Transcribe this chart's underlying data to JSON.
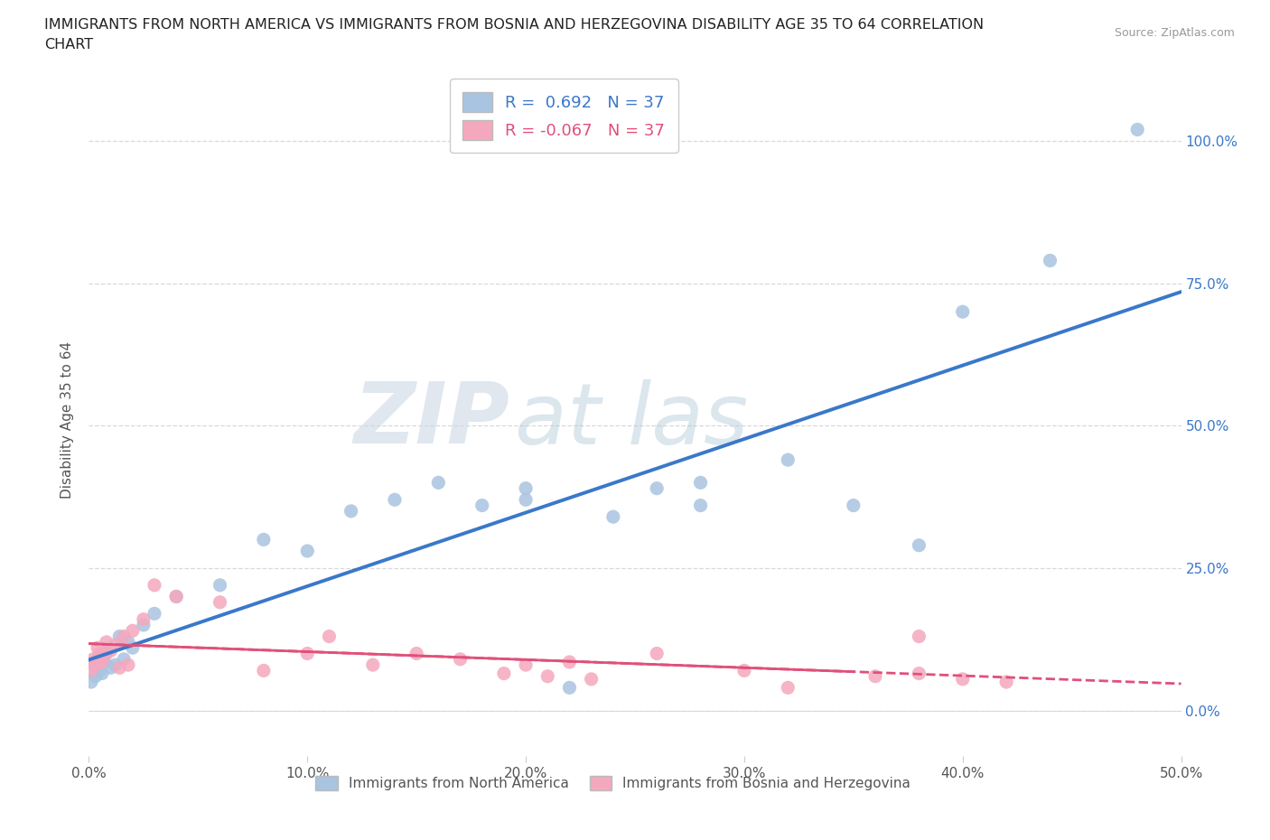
{
  "title_line1": "IMMIGRANTS FROM NORTH AMERICA VS IMMIGRANTS FROM BOSNIA AND HERZEGOVINA DISABILITY AGE 35 TO 64 CORRELATION",
  "title_line2": "CHART",
  "source_text": "Source: ZipAtlas.com",
  "ylabel": "Disability Age 35 to 64",
  "xlim": [
    0.0,
    0.5
  ],
  "ylim": [
    -0.08,
    1.1
  ],
  "xtick_vals": [
    0.0,
    0.1,
    0.2,
    0.3,
    0.4,
    0.5
  ],
  "xtick_labels": [
    "0.0%",
    "10.0%",
    "20.0%",
    "30.0%",
    "40.0%",
    "50.0%"
  ],
  "ytick_vals": [
    0.0,
    0.25,
    0.5,
    0.75,
    1.0
  ],
  "ytick_labels": [
    "0.0%",
    "25.0%",
    "50.0%",
    "75.0%",
    "100.0%"
  ],
  "blue_R": 0.692,
  "pink_R": -0.067,
  "N": 37,
  "blue_scatter_color": "#a8c4e0",
  "pink_scatter_color": "#f4a8be",
  "blue_line_color": "#3a78c9",
  "pink_line_color": "#e0507a",
  "grid_color": "#d8d8d8",
  "bg_color": "#ffffff",
  "legend_label_blue": "Immigrants from North America",
  "legend_label_pink": "Immigrants from Bosnia and Herzegovina",
  "watermark_color": "#ccd8e4",
  "title_color": "#222222",
  "axis_label_color": "#555555",
  "tick_label_color": "#555555",
  "blue_x": [
    0.001,
    0.002,
    0.003,
    0.004,
    0.005,
    0.006,
    0.007,
    0.008,
    0.01,
    0.012,
    0.014,
    0.016,
    0.018,
    0.02,
    0.025,
    0.03,
    0.04,
    0.06,
    0.08,
    0.1,
    0.12,
    0.14,
    0.16,
    0.18,
    0.2,
    0.2,
    0.22,
    0.24,
    0.26,
    0.28,
    0.28,
    0.32,
    0.35,
    0.38,
    0.4,
    0.44,
    0.48
  ],
  "blue_y": [
    0.05,
    0.08,
    0.06,
    0.09,
    0.07,
    0.065,
    0.085,
    0.1,
    0.075,
    0.08,
    0.13,
    0.09,
    0.12,
    0.11,
    0.15,
    0.17,
    0.2,
    0.22,
    0.3,
    0.28,
    0.35,
    0.37,
    0.4,
    0.36,
    0.37,
    0.39,
    0.04,
    0.34,
    0.39,
    0.36,
    0.4,
    0.44,
    0.36,
    0.29,
    0.7,
    0.79,
    1.02
  ],
  "pink_x": [
    0.001,
    0.002,
    0.003,
    0.004,
    0.005,
    0.006,
    0.007,
    0.008,
    0.01,
    0.012,
    0.014,
    0.016,
    0.018,
    0.02,
    0.025,
    0.03,
    0.04,
    0.06,
    0.08,
    0.1,
    0.11,
    0.13,
    0.15,
    0.17,
    0.19,
    0.2,
    0.21,
    0.22,
    0.23,
    0.26,
    0.3,
    0.32,
    0.36,
    0.38,
    0.38,
    0.4,
    0.42
  ],
  "pink_y": [
    0.07,
    0.09,
    0.08,
    0.11,
    0.1,
    0.085,
    0.095,
    0.12,
    0.105,
    0.115,
    0.075,
    0.13,
    0.08,
    0.14,
    0.16,
    0.22,
    0.2,
    0.19,
    0.07,
    0.1,
    0.13,
    0.08,
    0.1,
    0.09,
    0.065,
    0.08,
    0.06,
    0.085,
    0.055,
    0.1,
    0.07,
    0.04,
    0.06,
    0.065,
    0.13,
    0.055,
    0.05
  ]
}
